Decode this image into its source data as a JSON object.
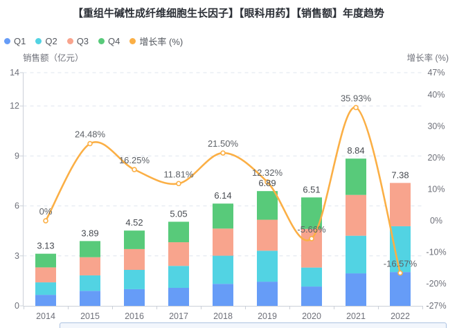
{
  "title": "【重组牛碱性成纤维细胞生长因子】【眼科用药】【销售额】年度趋势",
  "legend": {
    "items": [
      {
        "label": "Q1",
        "color": "#669cf7"
      },
      {
        "label": "Q2",
        "color": "#52d3e3"
      },
      {
        "label": "Q3",
        "color": "#f8a48d"
      },
      {
        "label": "Q4",
        "color": "#58ca7a"
      },
      {
        "label": "增长率 (%)",
        "color": "#fbaf45"
      }
    ]
  },
  "chart_data": {
    "type": "bar",
    "subtype": "stacked-bars-with-growth-line",
    "categories": [
      "2014",
      "2015",
      "2016",
      "2017",
      "2018",
      "2019",
      "2020",
      "2021",
      "2022"
    ],
    "series": [
      {
        "name": "Q1",
        "type": "bar",
        "stack": true,
        "color": "#669cf7",
        "values": [
          0.66,
          0.9,
          1.0,
          1.08,
          1.32,
          1.45,
          1.16,
          1.95,
          2.03
        ]
      },
      {
        "name": "Q2",
        "type": "bar",
        "stack": true,
        "color": "#52d3e3",
        "values": [
          0.75,
          0.93,
          1.16,
          1.32,
          1.69,
          1.86,
          1.14,
          2.26,
          2.75
        ]
      },
      {
        "name": "Q3",
        "type": "bar",
        "stack": true,
        "color": "#f8a48d",
        "values": [
          0.9,
          1.09,
          1.25,
          1.42,
          1.63,
          1.86,
          2.32,
          2.45,
          2.6
        ]
      },
      {
        "name": "Q4",
        "type": "bar",
        "stack": true,
        "color": "#58ca7a",
        "values": [
          0.82,
          0.97,
          1.11,
          1.23,
          1.5,
          1.72,
          1.89,
          2.18,
          0
        ]
      },
      {
        "name": "增长率 (%)",
        "type": "line",
        "yaxis": "right",
        "color": "#fbaf45",
        "smooth": true,
        "values": [
          0,
          24.48,
          16.25,
          11.81,
          21.5,
          12.32,
          -5.66,
          35.93,
          -16.57
        ],
        "labels": [
          "0%",
          "24.48%",
          "16.25%",
          "11.81%",
          "21.50%",
          "12.32%",
          "-5.66%",
          "35.93%",
          "-16.57%"
        ]
      }
    ],
    "bar_totals": {
      "values": [
        3.13,
        3.89,
        4.52,
        5.05,
        6.14,
        6.89,
        6.51,
        8.84,
        7.38
      ],
      "labels": [
        "3.13",
        "3.89",
        "4.52",
        "5.05",
        "6.14",
        "6.89",
        "6.51",
        "8.84",
        "7.38"
      ]
    },
    "left_axis": {
      "name": "销售额（亿元）",
      "min": 0,
      "max": 14,
      "ticks": [
        {
          "value": 14,
          "label": "14"
        },
        {
          "value": 12,
          "label": "12"
        },
        {
          "value": 9,
          "label": "9"
        },
        {
          "value": 6,
          "label": "6"
        },
        {
          "value": 3,
          "label": "3"
        },
        {
          "value": 0,
          "label": "0"
        }
      ]
    },
    "right_axis": {
      "name": "增长率 (%)",
      "min": -27,
      "max": 47,
      "ticks": [
        {
          "value": 47,
          "label": "47%"
        },
        {
          "value": 40,
          "label": "40%"
        },
        {
          "value": 30,
          "label": "30%"
        },
        {
          "value": 20,
          "label": "20%"
        },
        {
          "value": 10,
          "label": "10%"
        },
        {
          "value": 0,
          "label": "0%"
        },
        {
          "value": -10,
          "label": "-10%"
        },
        {
          "value": -20,
          "label": "-20%"
        },
        {
          "value": -27,
          "label": "-27%"
        }
      ]
    },
    "grid": {
      "horizontal_dashed": true,
      "color": "#dee4ee"
    },
    "style_colors": {
      "axis_line": "#cbd0d8",
      "tick_label": "#6e7079",
      "axis_name": "#6e7079",
      "total_label": "#464a50",
      "growth_label": "#5c6066",
      "background": "#ffffff"
    }
  },
  "datazoom": {
    "visible": true,
    "fill": "#f2f6fc",
    "border": "#abc1e1"
  }
}
